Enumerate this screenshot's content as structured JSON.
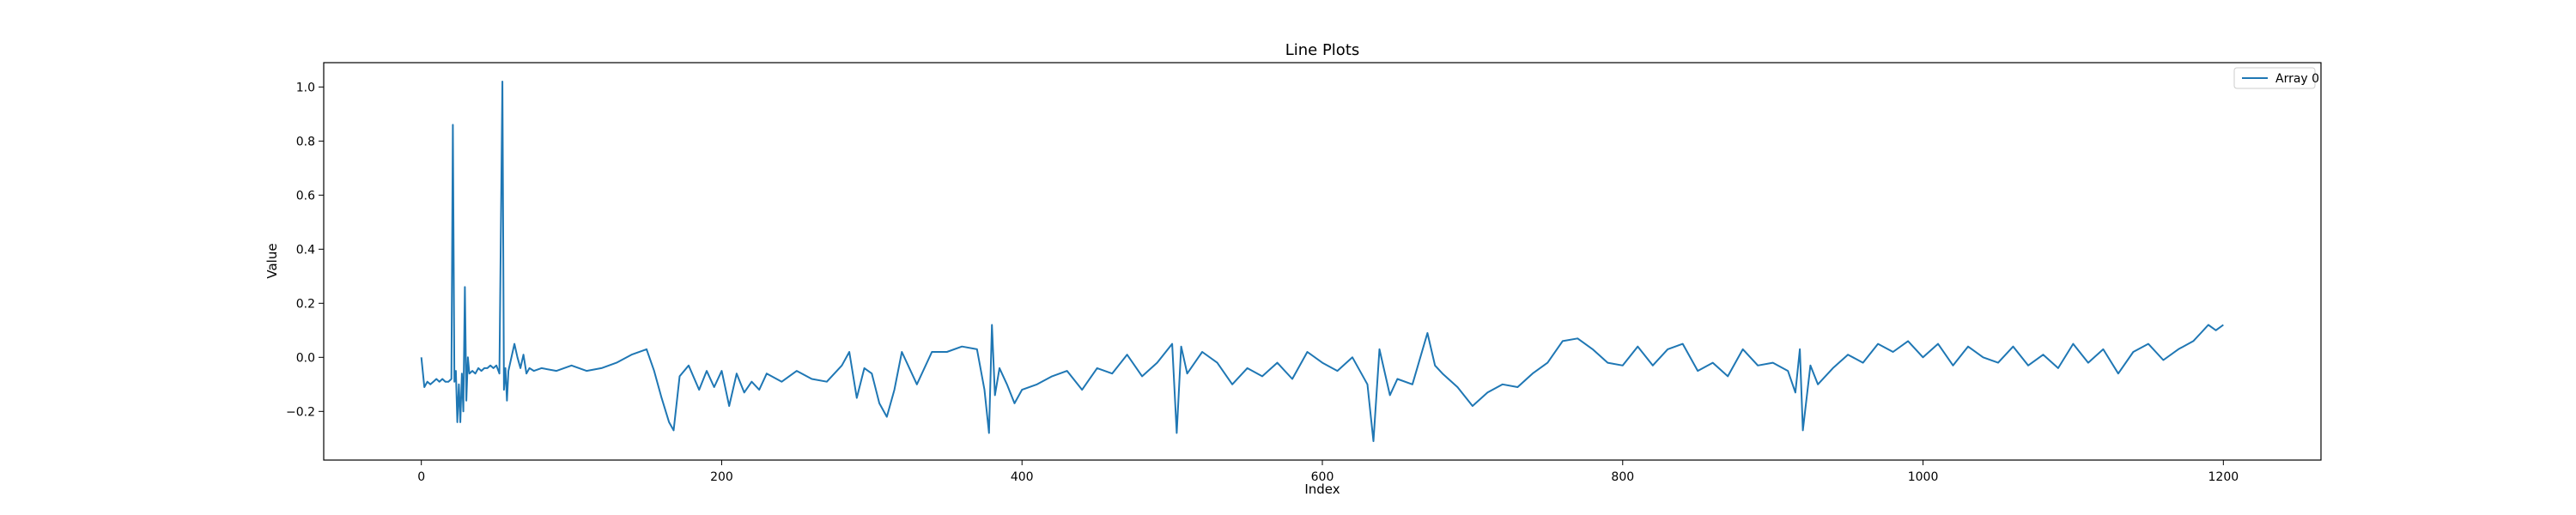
{
  "chart_data": {
    "type": "line",
    "title": "Line Plots",
    "xlabel": "Index",
    "ylabel": "Value",
    "xlim": [
      -65,
      1265
    ],
    "ylim": [
      -0.38,
      1.09
    ],
    "xticks": [
      0,
      200,
      400,
      600,
      800,
      1000,
      1200
    ],
    "yticks": [
      -0.2,
      0.0,
      0.2,
      0.4,
      0.6,
      0.8,
      1.0
    ],
    "xtick_labels": [
      "0",
      "200",
      "400",
      "600",
      "800",
      "1000",
      "1200"
    ],
    "ytick_labels": [
      "−0.2",
      "0.0",
      "0.2",
      "0.4",
      "0.6",
      "0.8",
      "1.0"
    ],
    "grid": false,
    "legend_position": "top-right",
    "series": [
      {
        "name": "Array 0",
        "color": "#1f77b4",
        "x": [
          0,
          2,
          4,
          6,
          8,
          10,
          12,
          14,
          16,
          18,
          20,
          21,
          22,
          23,
          24,
          25,
          26,
          27,
          28,
          29,
          30,
          31,
          32,
          34,
          36,
          38,
          40,
          42,
          44,
          46,
          48,
          50,
          52,
          54,
          55,
          56,
          57,
          58,
          60,
          62,
          64,
          66,
          68,
          70,
          72,
          75,
          80,
          90,
          100,
          110,
          120,
          130,
          140,
          150,
          155,
          160,
          165,
          168,
          172,
          178,
          185,
          190,
          195,
          200,
          205,
          210,
          215,
          220,
          225,
          230,
          240,
          250,
          260,
          270,
          280,
          285,
          290,
          295,
          300,
          305,
          310,
          315,
          320,
          330,
          340,
          350,
          360,
          370,
          375,
          378,
          380,
          382,
          385,
          390,
          395,
          400,
          410,
          420,
          430,
          440,
          450,
          460,
          470,
          480,
          490,
          500,
          503,
          506,
          510,
          520,
          530,
          540,
          550,
          560,
          570,
          580,
          590,
          600,
          610,
          620,
          630,
          634,
          638,
          645,
          650,
          660,
          670,
          675,
          680,
          690,
          700,
          710,
          720,
          730,
          740,
          750,
          760,
          770,
          780,
          790,
          800,
          810,
          820,
          830,
          840,
          850,
          860,
          870,
          880,
          890,
          900,
          910,
          915,
          918,
          920,
          925,
          930,
          940,
          950,
          960,
          970,
          980,
          990,
          1000,
          1010,
          1020,
          1030,
          1040,
          1050,
          1060,
          1070,
          1080,
          1090,
          1100,
          1110,
          1120,
          1130,
          1140,
          1150,
          1160,
          1170,
          1180,
          1185,
          1190,
          1195,
          1200
        ],
        "values": [
          0.0,
          -0.11,
          -0.09,
          -0.1,
          -0.09,
          -0.08,
          -0.09,
          -0.08,
          -0.09,
          -0.09,
          -0.08,
          0.86,
          -0.09,
          -0.05,
          -0.24,
          -0.1,
          -0.24,
          -0.06,
          -0.2,
          0.26,
          -0.16,
          0.0,
          -0.06,
          -0.05,
          -0.06,
          -0.04,
          -0.05,
          -0.04,
          -0.04,
          -0.03,
          -0.04,
          -0.03,
          -0.06,
          1.02,
          -0.12,
          -0.04,
          -0.16,
          -0.05,
          0.0,
          0.05,
          0.0,
          -0.04,
          0.01,
          -0.06,
          -0.04,
          -0.05,
          -0.04,
          -0.05,
          -0.03,
          -0.05,
          -0.04,
          -0.02,
          0.01,
          0.03,
          -0.05,
          -0.15,
          -0.24,
          -0.27,
          -0.07,
          -0.03,
          -0.12,
          -0.05,
          -0.11,
          -0.05,
          -0.18,
          -0.06,
          -0.13,
          -0.09,
          -0.12,
          -0.06,
          -0.09,
          -0.05,
          -0.08,
          -0.09,
          -0.03,
          0.02,
          -0.15,
          -0.04,
          -0.06,
          -0.17,
          -0.22,
          -0.12,
          0.02,
          -0.1,
          0.02,
          0.02,
          0.04,
          0.03,
          -0.12,
          -0.28,
          0.12,
          -0.14,
          -0.04,
          -0.1,
          -0.17,
          -0.12,
          -0.1,
          -0.07,
          -0.05,
          -0.12,
          -0.04,
          -0.06,
          0.01,
          -0.07,
          -0.02,
          0.05,
          -0.28,
          0.04,
          -0.06,
          0.02,
          -0.02,
          -0.1,
          -0.04,
          -0.07,
          -0.02,
          -0.08,
          0.02,
          -0.02,
          -0.05,
          0.0,
          -0.1,
          -0.31,
          0.03,
          -0.14,
          -0.08,
          -0.1,
          0.09,
          -0.03,
          -0.06,
          -0.11,
          -0.18,
          -0.13,
          -0.1,
          -0.11,
          -0.06,
          -0.02,
          0.06,
          0.07,
          0.03,
          -0.02,
          -0.03,
          0.04,
          -0.03,
          0.03,
          0.05,
          -0.05,
          -0.02,
          -0.07,
          0.03,
          -0.03,
          -0.02,
          -0.05,
          -0.13,
          0.03,
          -0.27,
          -0.03,
          -0.1,
          -0.04,
          0.01,
          -0.02,
          0.05,
          0.02,
          0.06,
          0.0,
          0.05,
          -0.03,
          0.04,
          0.0,
          -0.02,
          0.04,
          -0.03,
          0.01,
          -0.04,
          0.05,
          -0.02,
          0.03,
          -0.06,
          0.02,
          0.05,
          -0.01,
          0.03,
          0.06,
          0.09,
          0.12,
          0.1,
          0.12
        ]
      }
    ]
  }
}
